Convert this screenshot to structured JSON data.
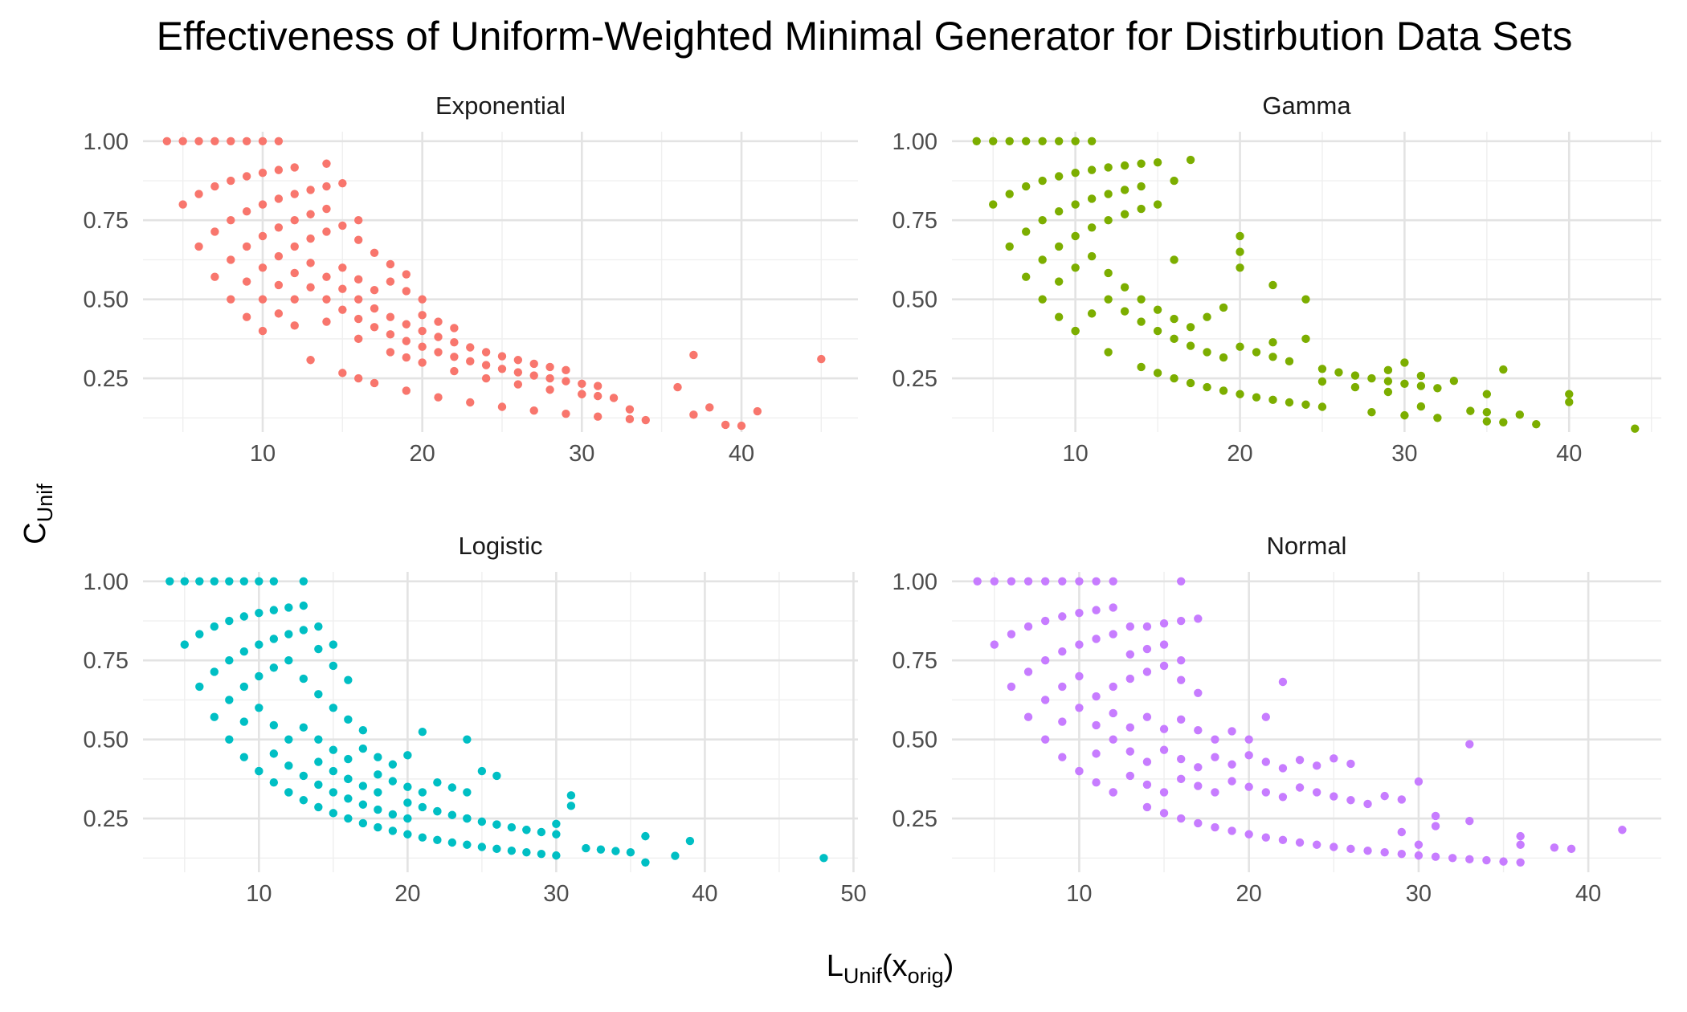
{
  "chart_data": {
    "type": "scatter",
    "title": "Effectiveness of Uniform-Weighted Minimal Generator for Distirbution Data Sets",
    "xlabel": {
      "main": "L",
      "sub": "Unif",
      "paren_open": "(x",
      "paren_sub": "orig",
      "paren_close": ")"
    },
    "ylabel": {
      "main": "C",
      "sub": "Unif"
    },
    "grid": true,
    "legend": "none",
    "facets": [
      {
        "name": "Exponential",
        "color": "#F8766D",
        "xlim": [
          2.5,
          47.3
        ],
        "ylim": [
          0.08,
          1.03
        ],
        "xticks": [
          10,
          20,
          30,
          40
        ],
        "xtick_labels": [
          "10",
          "20",
          "30",
          "40"
        ],
        "yticks": [
          0.25,
          0.5,
          0.75,
          1.0
        ],
        "ytick_labels": [
          "0.25",
          "0.50",
          "0.75",
          "1.00"
        ],
        "x": [
          4,
          5,
          6,
          7,
          8,
          9,
          10,
          11,
          5,
          6,
          7,
          8,
          9,
          10,
          11,
          12,
          14,
          6,
          7,
          8,
          9,
          10,
          11,
          12,
          13,
          14,
          15,
          16,
          7,
          8,
          9,
          10,
          11,
          12,
          13,
          14,
          15,
          16,
          17,
          18,
          19,
          8,
          9,
          10,
          11,
          12,
          13,
          14,
          15,
          16,
          17,
          18,
          19,
          20,
          9,
          10,
          11,
          12,
          13,
          14,
          15,
          16,
          17,
          18,
          19,
          20,
          21,
          22,
          10,
          11,
          12,
          13,
          14,
          15,
          16,
          17,
          18,
          19,
          20,
          21,
          22,
          23,
          24,
          25,
          26,
          27,
          28,
          29,
          30,
          31,
          12,
          14,
          16,
          18,
          20,
          22,
          24,
          26,
          28,
          30,
          32,
          33,
          34,
          36,
          37,
          38,
          39,
          40,
          41,
          37,
          45,
          16,
          19,
          20,
          21,
          22,
          23,
          24,
          25,
          26,
          27,
          28,
          29,
          30,
          31,
          13,
          15,
          17,
          19,
          21,
          23,
          25,
          27,
          29,
          31,
          33
        ],
        "y": [
          1.0,
          1.0,
          1.0,
          1.0,
          1.0,
          1.0,
          1.0,
          1.0,
          0.8,
          0.833,
          0.857,
          0.875,
          0.889,
          0.9,
          0.909,
          0.917,
          0.929,
          0.667,
          0.714,
          0.75,
          0.778,
          0.8,
          0.818,
          0.833,
          0.846,
          0.857,
          0.867,
          0.75,
          0.571,
          0.625,
          0.667,
          0.7,
          0.727,
          0.75,
          0.769,
          0.786,
          0.733,
          0.688,
          0.647,
          0.611,
          0.579,
          0.5,
          0.556,
          0.6,
          0.636,
          0.667,
          0.692,
          0.714,
          0.6,
          0.563,
          0.529,
          0.556,
          0.526,
          0.5,
          0.444,
          0.5,
          0.545,
          0.583,
          0.615,
          0.571,
          0.533,
          0.5,
          0.471,
          0.444,
          0.421,
          0.45,
          0.429,
          0.409,
          0.4,
          0.455,
          0.5,
          0.538,
          0.5,
          0.467,
          0.438,
          0.412,
          0.389,
          0.368,
          0.35,
          0.333,
          0.318,
          0.304,
          0.292,
          0.28,
          0.269,
          0.259,
          0.25,
          0.241,
          0.233,
          0.226,
          0.417,
          0.429,
          0.375,
          0.333,
          0.3,
          0.273,
          0.25,
          0.231,
          0.214,
          0.2,
          0.188,
          0.152,
          0.118,
          0.222,
          0.135,
          0.158,
          0.103,
          0.1,
          0.146,
          0.324,
          0.311,
          0.25,
          0.316,
          0.4,
          0.381,
          0.364,
          0.348,
          0.333,
          0.32,
          0.308,
          0.296,
          0.286,
          0.276,
          0.2,
          0.194,
          0.308,
          0.267,
          0.235,
          0.211,
          0.19,
          0.174,
          0.16,
          0.148,
          0.138,
          0.129,
          0.121
        ],
        "x_ticks_shown": true
      },
      {
        "name": "Gamma",
        "color": "#7CAE00",
        "xlim": [
          2.5,
          45.6
        ],
        "ylim": [
          0.08,
          1.03
        ],
        "xticks": [
          10,
          20,
          30,
          40
        ],
        "xtick_labels": [
          "10",
          "20",
          "30",
          "40"
        ],
        "yticks": [
          0.25,
          0.5,
          0.75,
          1.0
        ],
        "ytick_labels": [
          "0.25",
          "0.50",
          "0.75",
          "1.00"
        ],
        "x": [
          4,
          5,
          6,
          7,
          8,
          9,
          10,
          11,
          5,
          6,
          7,
          8,
          9,
          10,
          11,
          12,
          13,
          14,
          15,
          17,
          16,
          6,
          7,
          8,
          9,
          10,
          11,
          12,
          13,
          14,
          15,
          7,
          8,
          9,
          10,
          11,
          12,
          13,
          14,
          16,
          8,
          9,
          10,
          11,
          12,
          13,
          14,
          15,
          16,
          17,
          18,
          19,
          20,
          20,
          20,
          22,
          24,
          9,
          10,
          11,
          12,
          13,
          14,
          15,
          16,
          17,
          18,
          19,
          20,
          21,
          22,
          23,
          24,
          25,
          26,
          27,
          28,
          29,
          30,
          31,
          32,
          10,
          12,
          14,
          16,
          18,
          20,
          22,
          24,
          25,
          28,
          30,
          32,
          33,
          34,
          35,
          36,
          37,
          38,
          40,
          40,
          44,
          30,
          29,
          31,
          35,
          15,
          17,
          19,
          21,
          23,
          25,
          27,
          29,
          31,
          35,
          36,
          22
        ],
        "y": [
          1.0,
          1.0,
          1.0,
          1.0,
          1.0,
          1.0,
          1.0,
          1.0,
          0.8,
          0.833,
          0.857,
          0.875,
          0.889,
          0.9,
          0.909,
          0.917,
          0.923,
          0.929,
          0.933,
          0.941,
          0.875,
          0.667,
          0.714,
          0.75,
          0.778,
          0.8,
          0.818,
          0.833,
          0.846,
          0.857,
          0.8,
          0.571,
          0.625,
          0.667,
          0.7,
          0.727,
          0.75,
          0.769,
          0.786,
          0.625,
          0.5,
          0.556,
          0.6,
          0.636,
          0.583,
          0.538,
          0.5,
          0.467,
          0.438,
          0.412,
          0.444,
          0.474,
          0.65,
          0.7,
          0.6,
          0.545,
          0.5,
          0.444,
          0.4,
          0.455,
          0.5,
          0.462,
          0.429,
          0.4,
          0.375,
          0.353,
          0.333,
          0.316,
          0.35,
          0.333,
          0.318,
          0.304,
          0.375,
          0.28,
          0.269,
          0.259,
          0.25,
          0.241,
          0.233,
          0.226,
          0.219,
          0.4,
          0.333,
          0.286,
          0.25,
          0.222,
          0.2,
          0.182,
          0.167,
          0.16,
          0.143,
          0.133,
          0.125,
          0.242,
          0.147,
          0.114,
          0.111,
          0.135,
          0.105,
          0.2,
          0.175,
          0.091,
          0.3,
          0.276,
          0.258,
          0.2,
          0.267,
          0.235,
          0.211,
          0.19,
          0.174,
          0.24,
          0.222,
          0.207,
          0.161,
          0.143,
          0.278,
          0.364
        ],
        "x_ticks_shown": true
      },
      {
        "name": "Logistic",
        "color": "#00BFC4",
        "xlim": [
          2.2,
          50.3
        ],
        "ylim": [
          0.08,
          1.03
        ],
        "xticks": [
          10,
          20,
          30,
          40,
          50
        ],
        "xtick_labels": [
          "10",
          "20",
          "30",
          "40",
          "50"
        ],
        "yticks": [
          0.25,
          0.5,
          0.75,
          1.0
        ],
        "ytick_labels": [
          "0.25",
          "0.50",
          "0.75",
          "1.00"
        ],
        "x": [
          4,
          5,
          6,
          7,
          8,
          9,
          10,
          11,
          13,
          5,
          6,
          7,
          8,
          9,
          10,
          11,
          12,
          13,
          14,
          15,
          6,
          7,
          8,
          9,
          10,
          11,
          12,
          13,
          14,
          15,
          16,
          7,
          8,
          9,
          10,
          11,
          12,
          13,
          14,
          15,
          16,
          17,
          8,
          9,
          10,
          11,
          12,
          13,
          14,
          15,
          16,
          17,
          18,
          19,
          20,
          21,
          24,
          9,
          10,
          11,
          12,
          13,
          14,
          15,
          16,
          17,
          18,
          19,
          20,
          21,
          22,
          23,
          24,
          25,
          26,
          10,
          11,
          12,
          13,
          14,
          15,
          16,
          17,
          18,
          19,
          20,
          21,
          22,
          23,
          24,
          25,
          26,
          27,
          28,
          29,
          30,
          12,
          14,
          16,
          18,
          20,
          22,
          24,
          26,
          28,
          30,
          31,
          31,
          32,
          33,
          34,
          35,
          36,
          36,
          38,
          39,
          48,
          15,
          17,
          19,
          21,
          23,
          25,
          27,
          29,
          16,
          18,
          20,
          22,
          24,
          26,
          28,
          30
        ],
        "y": [
          1.0,
          1.0,
          1.0,
          1.0,
          1.0,
          1.0,
          1.0,
          1.0,
          1.0,
          0.8,
          0.833,
          0.857,
          0.875,
          0.889,
          0.9,
          0.909,
          0.917,
          0.923,
          0.857,
          0.8,
          0.667,
          0.714,
          0.75,
          0.778,
          0.8,
          0.818,
          0.833,
          0.846,
          0.786,
          0.733,
          0.688,
          0.571,
          0.625,
          0.667,
          0.7,
          0.727,
          0.75,
          0.692,
          0.643,
          0.6,
          0.563,
          0.529,
          0.5,
          0.556,
          0.6,
          0.545,
          0.5,
          0.538,
          0.5,
          0.467,
          0.438,
          0.471,
          0.444,
          0.421,
          0.45,
          0.524,
          0.5,
          0.444,
          0.4,
          0.455,
          0.417,
          0.385,
          0.429,
          0.4,
          0.375,
          0.353,
          0.389,
          0.368,
          0.35,
          0.333,
          0.364,
          0.348,
          0.333,
          0.4,
          0.385,
          0.4,
          0.364,
          0.333,
          0.308,
          0.357,
          0.333,
          0.313,
          0.294,
          0.278,
          0.263,
          0.25,
          0.286,
          0.273,
          0.261,
          0.25,
          0.24,
          0.231,
          0.222,
          0.214,
          0.207,
          0.2,
          0.333,
          0.286,
          0.25,
          0.222,
          0.2,
          0.182,
          0.167,
          0.154,
          0.143,
          0.133,
          0.323,
          0.29,
          0.156,
          0.152,
          0.147,
          0.143,
          0.194,
          0.111,
          0.132,
          0.179,
          0.125,
          0.267,
          0.235,
          0.211,
          0.19,
          0.174,
          0.16,
          0.148,
          0.138,
          0.375,
          0.333,
          0.3,
          0.273,
          0.25,
          0.231,
          0.214,
          0.233
        ],
        "x_ticks_shown": true
      },
      {
        "name": "Normal",
        "color": "#C77CFF",
        "xlim": [
          2.5,
          44.3
        ],
        "ylim": [
          0.08,
          1.03
        ],
        "xticks": [
          10,
          20,
          30,
          40
        ],
        "xtick_labels": [
          "10",
          "20",
          "30",
          "40"
        ],
        "yticks": [
          0.25,
          0.5,
          0.75,
          1.0
        ],
        "ytick_labels": [
          "0.25",
          "0.50",
          "0.75",
          "1.00"
        ],
        "x": [
          4,
          5,
          6,
          7,
          8,
          9,
          10,
          11,
          12,
          16,
          5,
          6,
          7,
          8,
          9,
          10,
          11,
          12,
          13,
          14,
          15,
          16,
          17,
          6,
          7,
          8,
          9,
          10,
          11,
          12,
          13,
          14,
          15,
          16,
          7,
          8,
          9,
          10,
          11,
          12,
          13,
          14,
          15,
          16,
          17,
          8,
          9,
          10,
          11,
          12,
          13,
          14,
          15,
          16,
          17,
          18,
          19,
          20,
          21,
          22,
          9,
          10,
          11,
          12,
          13,
          14,
          15,
          16,
          17,
          18,
          19,
          20,
          21,
          22,
          23,
          24,
          25,
          26,
          10,
          11,
          12,
          13,
          14,
          15,
          16,
          17,
          18,
          19,
          20,
          21,
          22,
          23,
          24,
          25,
          26,
          27,
          28,
          29,
          30,
          31,
          12,
          14,
          16,
          18,
          20,
          22,
          24,
          26,
          28,
          30,
          32,
          33,
          34,
          35,
          36,
          36,
          38,
          39,
          42,
          33,
          30,
          29,
          31,
          33,
          36,
          15,
          17,
          19,
          21,
          23,
          25,
          27,
          29,
          31
        ],
        "y": [
          1.0,
          1.0,
          1.0,
          1.0,
          1.0,
          1.0,
          1.0,
          1.0,
          1.0,
          1.0,
          0.8,
          0.833,
          0.857,
          0.875,
          0.889,
          0.9,
          0.909,
          0.917,
          0.857,
          0.857,
          0.867,
          0.875,
          0.882,
          0.667,
          0.714,
          0.75,
          0.778,
          0.8,
          0.818,
          0.833,
          0.769,
          0.786,
          0.8,
          0.75,
          0.571,
          0.625,
          0.667,
          0.7,
          0.636,
          0.667,
          0.692,
          0.714,
          0.733,
          0.688,
          0.647,
          0.5,
          0.556,
          0.6,
          0.545,
          0.583,
          0.538,
          0.571,
          0.533,
          0.563,
          0.529,
          0.5,
          0.526,
          0.5,
          0.571,
          0.682,
          0.444,
          0.4,
          0.455,
          0.5,
          0.462,
          0.429,
          0.467,
          0.438,
          0.412,
          0.444,
          0.421,
          0.45,
          0.429,
          0.409,
          0.435,
          0.417,
          0.44,
          0.423,
          0.4,
          0.364,
          0.333,
          0.385,
          0.357,
          0.333,
          0.375,
          0.353,
          0.333,
          0.368,
          0.35,
          0.333,
          0.318,
          0.348,
          0.333,
          0.32,
          0.308,
          0.296,
          0.321,
          0.31,
          0.367,
          0.258,
          0.333,
          0.286,
          0.25,
          0.222,
          0.2,
          0.182,
          0.167,
          0.154,
          0.143,
          0.133,
          0.125,
          0.121,
          0.118,
          0.114,
          0.111,
          0.167,
          0.158,
          0.154,
          0.214,
          0.485,
          0.167,
          0.207,
          0.226,
          0.242,
          0.194,
          0.267,
          0.235,
          0.211,
          0.19,
          0.174,
          0.16,
          0.148,
          0.138,
          0.129
        ],
        "x_ticks_shown": true
      }
    ]
  }
}
